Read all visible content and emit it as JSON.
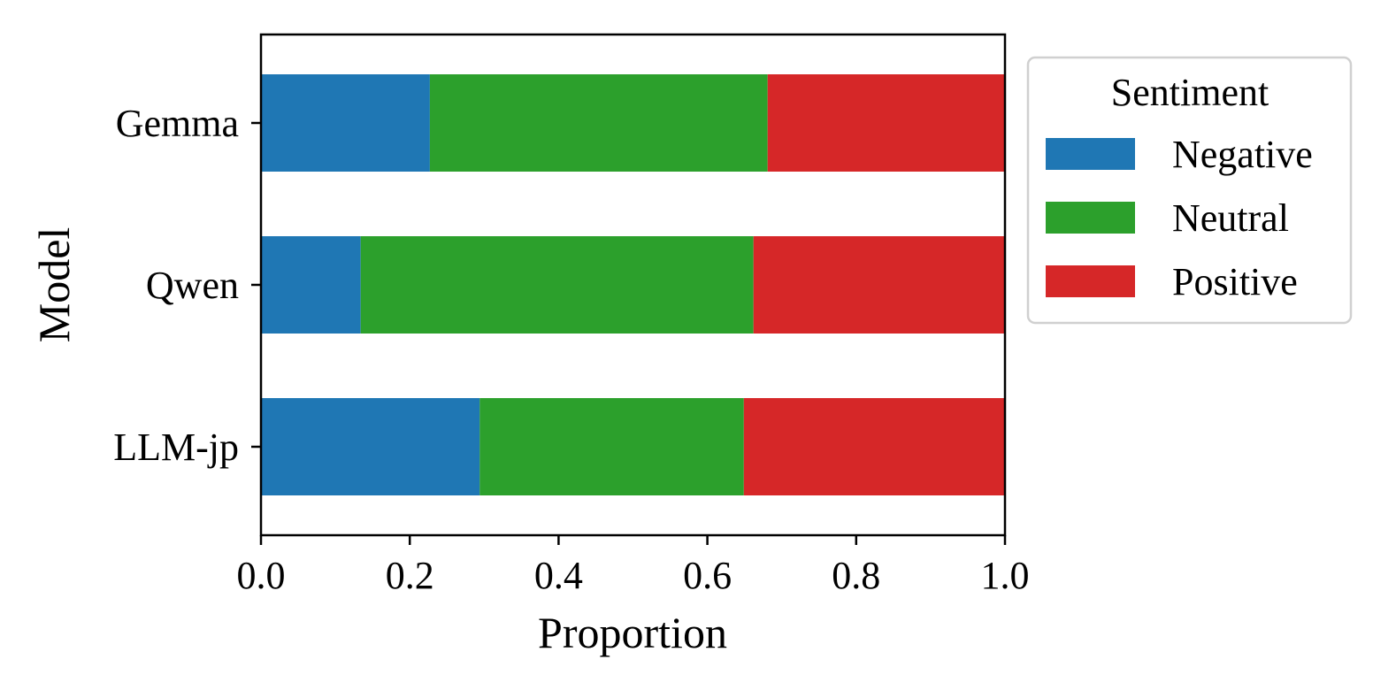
{
  "chart_data": {
    "type": "bar",
    "orientation": "horizontal",
    "stacked": true,
    "categories": [
      "Gemma",
      "Qwen",
      "LLM-jp"
    ],
    "series": [
      {
        "name": "Negative",
        "color": "#1f77b4",
        "values": [
          0.227,
          0.134,
          0.294
        ]
      },
      {
        "name": "Neutral",
        "color": "#2ca02c",
        "values": [
          0.454,
          0.528,
          0.355
        ]
      },
      {
        "name": "Positive",
        "color": "#d62728",
        "values": [
          0.319,
          0.338,
          0.351
        ]
      }
    ],
    "xlabel": "Proportion",
    "ylabel": "Model",
    "xlim": [
      0.0,
      1.0
    ],
    "xticks": [
      "0.0",
      "0.2",
      "0.4",
      "0.6",
      "0.8",
      "1.0"
    ],
    "legend": {
      "title": "Sentiment",
      "placement": "outside-right-top"
    },
    "grid": false
  }
}
